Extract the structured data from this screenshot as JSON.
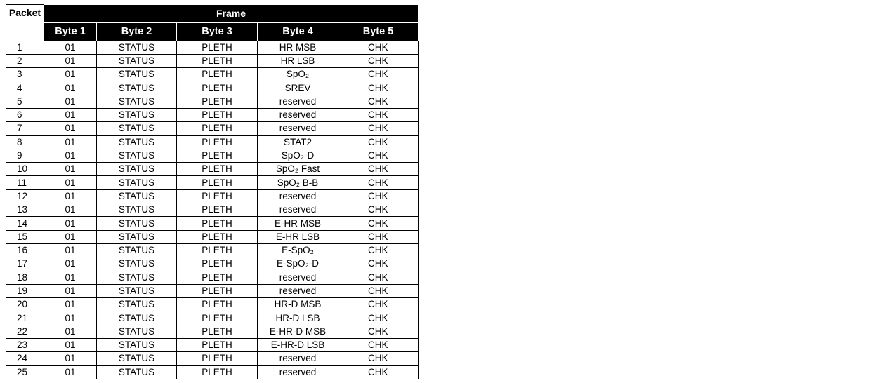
{
  "table": {
    "header_packet": "Packet",
    "header_frame": "Frame",
    "byte_headers": [
      "Byte 1",
      "Byte 2",
      "Byte 3",
      "Byte 4",
      "Byte 5"
    ],
    "rows": [
      [
        "1",
        "01",
        "STATUS",
        "PLETH",
        "HR MSB",
        "CHK"
      ],
      [
        "2",
        "01",
        "STATUS",
        "PLETH",
        "HR LSB",
        "CHK"
      ],
      [
        "3",
        "01",
        "STATUS",
        "PLETH",
        "SpO₂",
        "CHK"
      ],
      [
        "4",
        "01",
        "STATUS",
        "PLETH",
        "SREV",
        "CHK"
      ],
      [
        "5",
        "01",
        "STATUS",
        "PLETH",
        "reserved",
        "CHK"
      ],
      [
        "6",
        "01",
        "STATUS",
        "PLETH",
        "reserved",
        "CHK"
      ],
      [
        "7",
        "01",
        "STATUS",
        "PLETH",
        "reserved",
        "CHK"
      ],
      [
        "8",
        "01",
        "STATUS",
        "PLETH",
        "STAT2",
        "CHK"
      ],
      [
        "9",
        "01",
        "STATUS",
        "PLETH",
        "SpO₂-D",
        "CHK"
      ],
      [
        "10",
        "01",
        "STATUS",
        "PLETH",
        "SpO₂ Fast",
        "CHK"
      ],
      [
        "11",
        "01",
        "STATUS",
        "PLETH",
        "SpO₂ B-B",
        "CHK"
      ],
      [
        "12",
        "01",
        "STATUS",
        "PLETH",
        "reserved",
        "CHK"
      ],
      [
        "13",
        "01",
        "STATUS",
        "PLETH",
        "reserved",
        "CHK"
      ],
      [
        "14",
        "01",
        "STATUS",
        "PLETH",
        "E-HR MSB",
        "CHK"
      ],
      [
        "15",
        "01",
        "STATUS",
        "PLETH",
        "E-HR LSB",
        "CHK"
      ],
      [
        "16",
        "01",
        "STATUS",
        "PLETH",
        "E-SpO₂",
        "CHK"
      ],
      [
        "17",
        "01",
        "STATUS",
        "PLETH",
        "E-SpO₂-D",
        "CHK"
      ],
      [
        "18",
        "01",
        "STATUS",
        "PLETH",
        "reserved",
        "CHK"
      ],
      [
        "19",
        "01",
        "STATUS",
        "PLETH",
        "reserved",
        "CHK"
      ],
      [
        "20",
        "01",
        "STATUS",
        "PLETH",
        "HR-D MSB",
        "CHK"
      ],
      [
        "21",
        "01",
        "STATUS",
        "PLETH",
        "HR-D LSB",
        "CHK"
      ],
      [
        "22",
        "01",
        "STATUS",
        "PLETH",
        "E-HR-D MSB",
        "CHK"
      ],
      [
        "23",
        "01",
        "STATUS",
        "PLETH",
        "E-HR-D LSB",
        "CHK"
      ],
      [
        "24",
        "01",
        "STATUS",
        "PLETH",
        "reserved",
        "CHK"
      ],
      [
        "25",
        "01",
        "STATUS",
        "PLETH",
        "reserved",
        "CHK"
      ]
    ]
  }
}
